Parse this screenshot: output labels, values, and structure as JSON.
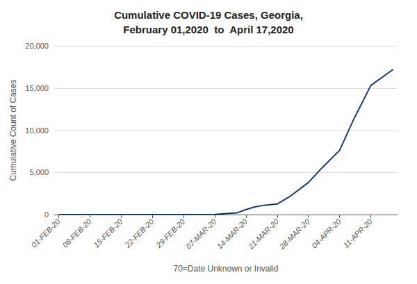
{
  "chart_data": {
    "type": "line",
    "title": "Cumulative COVID-19 Cases, Georgia,\nFebruary 01,2020  to  April 17,2020",
    "xlabel": "70=Date Unknown or Invalid",
    "ylabel": "Cumulative Count of Cases",
    "color": "#1a3a6b",
    "x": [
      0,
      7,
      14,
      21,
      27,
      28,
      35,
      40,
      42,
      44,
      46,
      49,
      52,
      56,
      59,
      63,
      66,
      70,
      75
    ],
    "values": [
      0,
      0,
      0,
      0,
      1,
      2,
      22,
      200,
      600,
      900,
      1100,
      1250,
      2200,
      3800,
      5500,
      7600,
      11100,
      15300,
      17200
    ],
    "xlim": [
      -1,
      76
    ],
    "xticks": [
      {
        "value": 0,
        "label": "01-FEB-20"
      },
      {
        "value": 7,
        "label": "08-FEB-20"
      },
      {
        "value": 14,
        "label": "15-FEB-20"
      },
      {
        "value": 21,
        "label": "22-FEB-20"
      },
      {
        "value": 28,
        "label": "29-FEB-20"
      },
      {
        "value": 35,
        "label": "07-MAR-20"
      },
      {
        "value": 42,
        "label": "14-MAR-20"
      },
      {
        "value": 49,
        "label": "21-MAR-20"
      },
      {
        "value": 56,
        "label": "28-MAR-20"
      },
      {
        "value": 63,
        "label": "04-APR-20"
      },
      {
        "value": 70,
        "label": "11-APR-20"
      }
    ],
    "ylim": [
      0,
      20000
    ],
    "yticks": [
      0,
      {
        "value": 5000,
        "label": "5,000"
      },
      {
        "value": 10000,
        "label": "10,000"
      },
      {
        "value": 15000,
        "label": "15,000"
      },
      {
        "value": 20000,
        "label": "20,000"
      }
    ],
    "grid": true
  }
}
